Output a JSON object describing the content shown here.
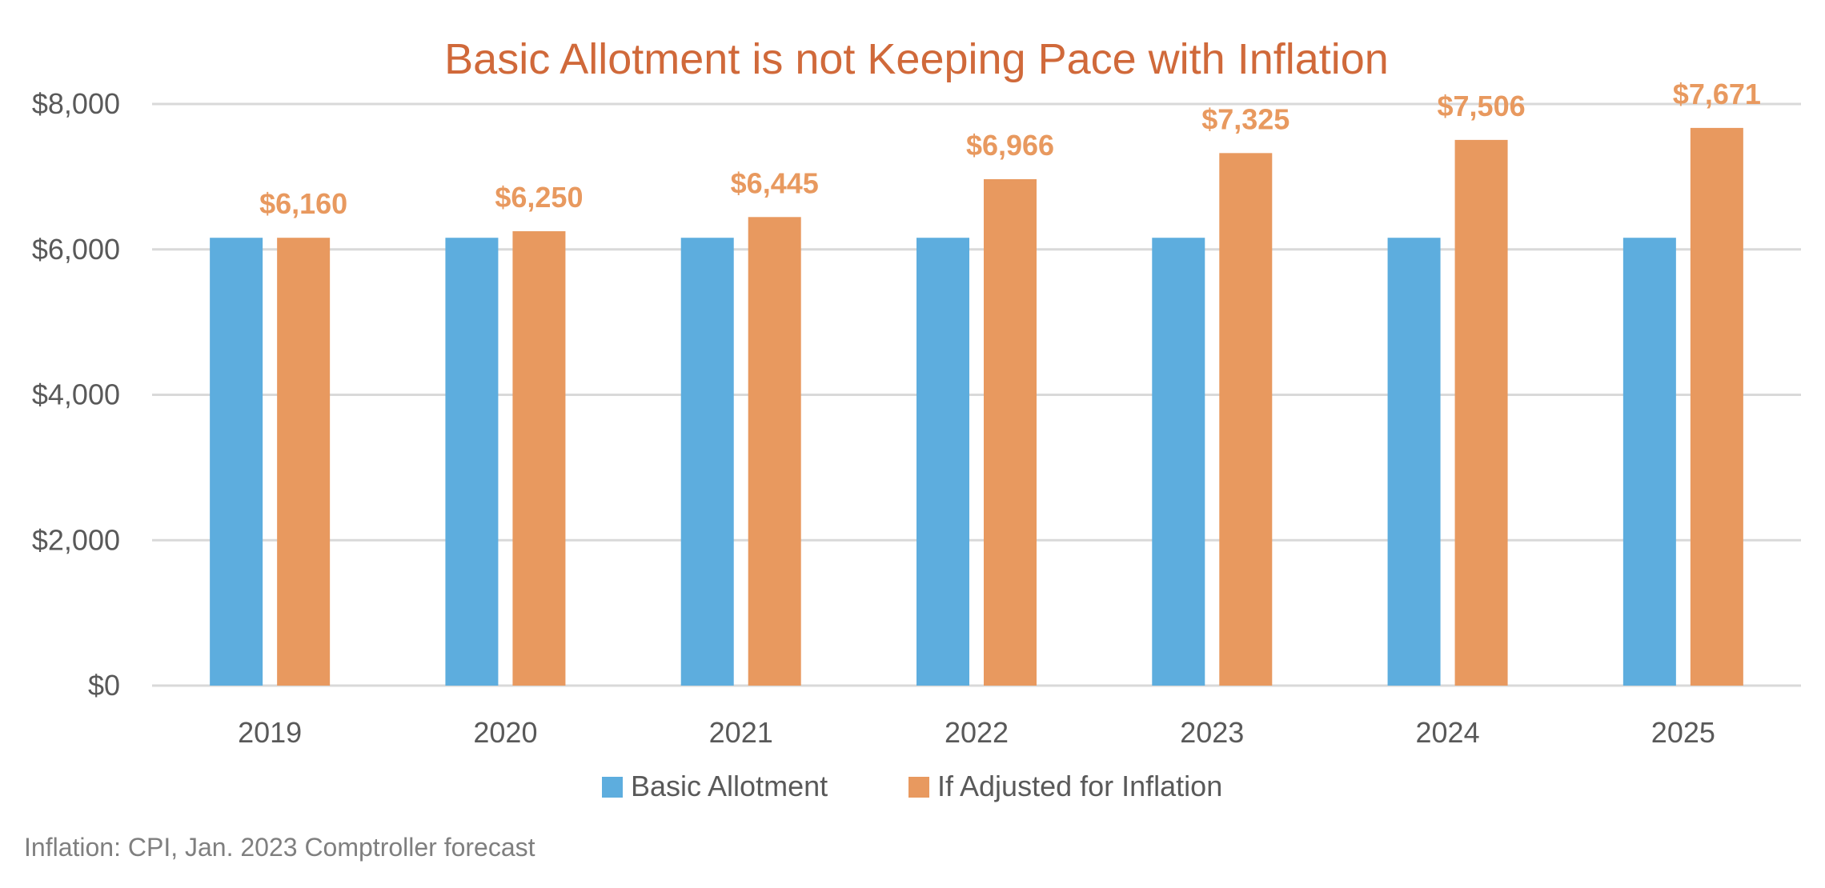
{
  "chart_data": {
    "type": "bar",
    "title": "Basic Allotment is not Keeping Pace with Inflation",
    "categories": [
      "2019",
      "2020",
      "2021",
      "2022",
      "2023",
      "2024",
      "2025"
    ],
    "series": [
      {
        "name": "Basic Allotment",
        "color": "#5DADDE",
        "values": [
          6160,
          6160,
          6160,
          6160,
          6160,
          6160,
          6160
        ]
      },
      {
        "name": "If Adjusted for Inflation",
        "color": "#E8995F",
        "values": [
          6160,
          6250,
          6445,
          6966,
          7325,
          7506,
          7671
        ],
        "data_labels": [
          "$6,160",
          "$6,250",
          "$6,445",
          "$6,966",
          "$7,325",
          "$7,506",
          "$7,671"
        ]
      }
    ],
    "ylim": [
      0,
      8000
    ],
    "yticks": [
      0,
      2000,
      4000,
      6000,
      8000
    ],
    "ytick_labels": [
      "$0",
      "$2,000",
      "$4,000",
      "$6,000",
      "$8,000"
    ],
    "grid": true,
    "legend_position": "bottom",
    "footnote": "Inflation: CPI, Jan. 2023 Comptroller forecast"
  }
}
